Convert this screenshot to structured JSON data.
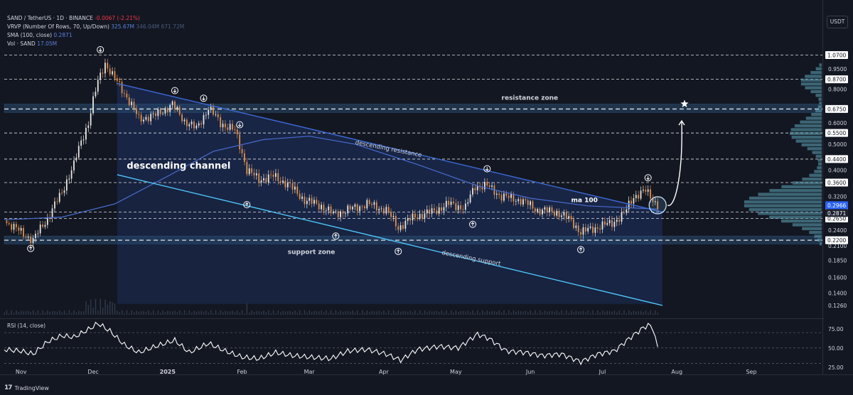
{
  "header": {
    "symbol_line": "SAND / TetherUS · 1D · BINANCE",
    "change": "-0.0067 (-2.21%)",
    "vrvp_label": "VRVP (Number Of Rows, 70, Up/Down)",
    "vrvp_v1": "325.67M",
    "vrvp_v2": "346.04M",
    "vrvp_v3": "671.72M",
    "sma_label": "SMA (100, close)",
    "sma_value": "0.2871",
    "vol_label": "Vol · SAND",
    "vol_value": "17.05M",
    "currency": "USDT"
  },
  "rsi": {
    "label": "RSI (14, close)",
    "ticks": [
      "75.00",
      "50.00",
      "25.00"
    ]
  },
  "footer": {
    "brand": "TradingView",
    "logo": "tradingview-logo-icon"
  },
  "colors": {
    "background": "#131722",
    "up": "#e8e6e1",
    "down": "#e0904a",
    "channel_fill": "#1c2d57",
    "resistance": "#3d6ad6",
    "support": "#4fc3f7",
    "zone": "#2a4a6e",
    "sma": "#4a6cd0",
    "profile": "#5fa5b8",
    "rsi": "#ffffff"
  },
  "chart_data": {
    "type": "candlestick",
    "title": "SAND / TetherUS · 1D · BINANCE",
    "y_scale": "log",
    "ylim": [
      0.115,
      1.12
    ],
    "price_ticks": [
      "0.9500",
      "0.8000",
      "0.6000",
      "0.5000",
      "0.4000",
      "0.3200",
      "0.2400",
      "0.2100",
      "0.1850",
      "0.1600",
      "0.1400",
      "0.1260"
    ],
    "level_labels": [
      "1.0700",
      "0.8700",
      "0.6750",
      "0.5500",
      "0.4400",
      "0.3600",
      "0.2800",
      "0.2650",
      "0.2200"
    ],
    "current_price": "0.2966",
    "sma_label_value": "0.2871",
    "x_labels": [
      "Nov",
      "Dec",
      "2025",
      "Feb",
      "Mar",
      "Apr",
      "May",
      "Jun",
      "Jul",
      "Aug",
      "Sep"
    ],
    "x_label_dates": [
      "2024-11-01",
      "2024-12-01",
      "2025-01-01",
      "2025-02-01",
      "2025-03-01",
      "2025-04-01",
      "2025-05-01",
      "2025-06-01",
      "2025-07-01",
      "2025-08-01",
      "2025-09-01"
    ],
    "x_range": [
      "2024-10-25",
      "2025-09-30"
    ],
    "last_date": "2025-07-24",
    "price_path": [
      [
        "2024-10-25",
        0.26
      ],
      [
        "2024-11-02",
        0.232
      ],
      [
        "2024-11-06",
        0.22
      ],
      [
        "2024-11-12",
        0.265
      ],
      [
        "2024-11-18",
        0.33
      ],
      [
        "2024-11-23",
        0.42
      ],
      [
        "2024-11-29",
        0.6
      ],
      [
        "2024-12-03",
        0.85
      ],
      [
        "2024-12-06",
        1.0
      ],
      [
        "2024-12-09",
        0.9
      ],
      [
        "2024-12-13",
        0.8
      ],
      [
        "2024-12-20",
        0.62
      ],
      [
        "2024-12-27",
        0.64
      ],
      [
        "2025-01-03",
        0.7
      ],
      [
        "2025-01-08",
        0.61
      ],
      [
        "2025-01-13",
        0.57
      ],
      [
        "2025-01-18",
        0.68
      ],
      [
        "2025-01-23",
        0.6
      ],
      [
        "2025-01-29",
        0.56
      ],
      [
        "2025-02-03",
        0.4
      ],
      [
        "2025-02-08",
        0.37
      ],
      [
        "2025-02-14",
        0.38
      ],
      [
        "2025-02-20",
        0.355
      ],
      [
        "2025-02-27",
        0.31
      ],
      [
        "2025-03-06",
        0.295
      ],
      [
        "2025-03-11",
        0.275
      ],
      [
        "2025-03-17",
        0.285
      ],
      [
        "2025-03-25",
        0.3
      ],
      [
        "2025-04-02",
        0.285
      ],
      [
        "2025-04-07",
        0.245
      ],
      [
        "2025-04-14",
        0.27
      ],
      [
        "2025-04-21",
        0.28
      ],
      [
        "2025-04-28",
        0.3
      ],
      [
        "2025-05-05",
        0.29
      ],
      [
        "2025-05-09",
        0.35
      ],
      [
        "2025-05-14",
        0.35
      ],
      [
        "2025-05-20",
        0.32
      ],
      [
        "2025-05-28",
        0.31
      ],
      [
        "2025-06-04",
        0.285
      ],
      [
        "2025-06-12",
        0.28
      ],
      [
        "2025-06-18",
        0.26
      ],
      [
        "2025-06-22",
        0.235
      ],
      [
        "2025-06-28",
        0.245
      ],
      [
        "2025-07-05",
        0.255
      ],
      [
        "2025-07-10",
        0.275
      ],
      [
        "2025-07-14",
        0.32
      ],
      [
        "2025-07-19",
        0.335
      ],
      [
        "2025-07-24",
        0.2966
      ]
    ],
    "sma_path": [
      [
        "2024-10-25",
        0.262
      ],
      [
        "2024-11-18",
        0.268
      ],
      [
        "2024-12-10",
        0.3
      ],
      [
        "2025-01-01",
        0.38
      ],
      [
        "2025-01-20",
        0.47
      ],
      [
        "2025-02-10",
        0.52
      ],
      [
        "2025-03-01",
        0.535
      ],
      [
        "2025-03-20",
        0.5
      ],
      [
        "2025-04-15",
        0.42
      ],
      [
        "2025-05-10",
        0.35
      ],
      [
        "2025-06-01",
        0.315
      ],
      [
        "2025-06-25",
        0.295
      ],
      [
        "2025-07-24",
        0.287
      ]
    ],
    "rsi_path": [
      [
        "2024-10-25",
        48
      ],
      [
        "2024-11-01",
        46
      ],
      [
        "2024-11-06",
        42
      ],
      [
        "2024-11-12",
        58
      ],
      [
        "2024-11-18",
        66
      ],
      [
        "2024-11-23",
        64
      ],
      [
        "2024-11-29",
        74
      ],
      [
        "2024-12-03",
        82
      ],
      [
        "2024-12-08",
        72
      ],
      [
        "2024-12-14",
        54
      ],
      [
        "2024-12-20",
        44
      ],
      [
        "2024-12-27",
        52
      ],
      [
        "2025-01-04",
        60
      ],
      [
        "2025-01-10",
        44
      ],
      [
        "2025-01-18",
        56
      ],
      [
        "2025-01-25",
        46
      ],
      [
        "2025-02-01",
        38
      ],
      [
        "2025-02-08",
        36
      ],
      [
        "2025-02-15",
        44
      ],
      [
        "2025-02-22",
        40
      ],
      [
        "2025-03-01",
        38
      ],
      [
        "2025-03-10",
        36
      ],
      [
        "2025-03-17",
        46
      ],
      [
        "2025-03-25",
        48
      ],
      [
        "2025-04-02",
        42
      ],
      [
        "2025-04-08",
        34
      ],
      [
        "2025-04-15",
        48
      ],
      [
        "2025-04-24",
        52
      ],
      [
        "2025-05-02",
        50
      ],
      [
        "2025-05-10",
        68
      ],
      [
        "2025-05-15",
        62
      ],
      [
        "2025-05-22",
        46
      ],
      [
        "2025-05-30",
        44
      ],
      [
        "2025-06-06",
        40
      ],
      [
        "2025-06-14",
        42
      ],
      [
        "2025-06-22",
        32
      ],
      [
        "2025-06-29",
        42
      ],
      [
        "2025-07-06",
        46
      ],
      [
        "2025-07-12",
        62
      ],
      [
        "2025-07-17",
        74
      ],
      [
        "2025-07-20",
        80
      ],
      [
        "2025-07-22",
        76
      ],
      [
        "2025-07-24",
        50
      ]
    ],
    "rsi_levels": [
      70,
      50,
      30
    ],
    "horizontal_levels": [
      1.07,
      0.87,
      0.675,
      0.55,
      0.44,
      0.36,
      0.28,
      0.265,
      0.22
    ],
    "zones": [
      {
        "label": "resistance zone",
        "from": 0.655,
        "to": 0.705
      },
      {
        "label": "support zone",
        "from": 0.213,
        "to": 0.228
      }
    ],
    "channel": {
      "label": "descending channel",
      "resistance_label": "descending resistance",
      "support_label": "descending support",
      "resistance": [
        [
          "2024-12-11",
          0.84
        ],
        [
          "2025-07-26",
          0.28
        ]
      ],
      "support": [
        [
          "2024-12-11",
          0.385
        ],
        [
          "2025-07-26",
          0.126
        ]
      ]
    },
    "annotations": [
      "ma 100"
    ],
    "markers_down": [
      [
        "2024-12-04",
        1.12
      ],
      [
        "2025-01-04",
        0.79
      ],
      [
        "2025-01-16",
        0.74
      ],
      [
        "2025-01-31",
        0.59
      ],
      [
        "2025-05-14",
        0.405
      ],
      [
        "2025-07-20",
        0.375
      ]
    ],
    "markers_up": [
      [
        "2024-11-05",
        0.205
      ],
      [
        "2025-02-03",
        0.298
      ],
      [
        "2025-03-12",
        0.228
      ],
      [
        "2025-04-07",
        0.2
      ],
      [
        "2025-05-08",
        0.252
      ],
      [
        "2025-06-22",
        0.203
      ]
    ],
    "target_date": "2025-08-03"
  }
}
